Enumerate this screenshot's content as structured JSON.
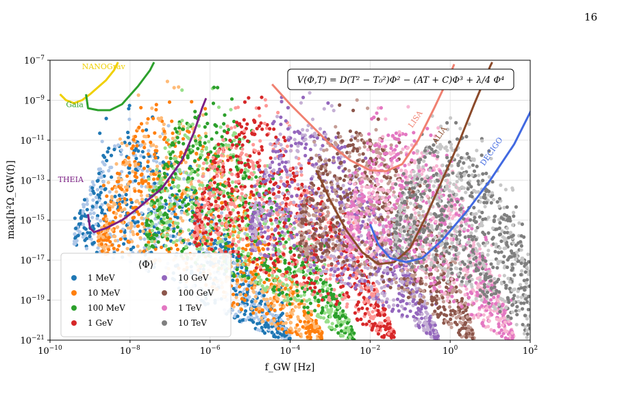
{
  "page_number": "16",
  "chart_data": {
    "type": "scatter",
    "title": "",
    "xlabel": "f_GW [Hz]",
    "ylabel": "max[h²Ω_GW(f)]",
    "x_scale": "log",
    "y_scale": "log",
    "xlim": [
      1e-10,
      100
    ],
    "ylim": [
      1e-21,
      1e-07
    ],
    "grid": true,
    "x_ticks": [
      {
        "value": 1e-10,
        "base": "10",
        "exp": "−10"
      },
      {
        "value": 1e-08,
        "base": "10",
        "exp": "−8"
      },
      {
        "value": 1e-06,
        "base": "10",
        "exp": "−6"
      },
      {
        "value": 0.0001,
        "base": "10",
        "exp": "−4"
      },
      {
        "value": 0.01,
        "base": "10",
        "exp": "−2"
      },
      {
        "value": 1,
        "base": "10",
        "exp": "0"
      },
      {
        "value": 100,
        "base": "10",
        "exp": "2"
      }
    ],
    "y_ticks": [
      {
        "value": 1e-21,
        "base": "10",
        "exp": "−21"
      },
      {
        "value": 1e-19,
        "base": "10",
        "exp": "−19"
      },
      {
        "value": 1e-17,
        "base": "10",
        "exp": "−17"
      },
      {
        "value": 1e-15,
        "base": "10",
        "exp": "−15"
      },
      {
        "value": 1e-13,
        "base": "10",
        "exp": "−13"
      },
      {
        "value": 1e-11,
        "base": "10",
        "exp": "−11"
      },
      {
        "value": 1e-09,
        "base": "10",
        "exp": "−9"
      },
      {
        "value": 1e-07,
        "base": "10",
        "exp": "−7"
      }
    ],
    "annotation": "V(Φ,T) = D(T² − T₀²)Φ² − (AT + C)Φ³ + λ/4 Φ⁴",
    "legend": {
      "title": "⟨Φ⟩",
      "position": "lower-left",
      "columns": 2
    },
    "series": [
      {
        "name": "1 MeV",
        "color": "#1f77b4",
        "light": "#aec7e8",
        "upper": [
          [
            -9.4,
            -15.4
          ],
          [
            -9.0,
            -13.2
          ],
          [
            -8.6,
            -11.3
          ],
          [
            -8.0,
            -10.8
          ],
          [
            -7.2,
            -11.4
          ],
          [
            -6.6,
            -13.0
          ],
          [
            -5.8,
            -15.2
          ],
          [
            -5.2,
            -17.0
          ],
          [
            -4.6,
            -18.8
          ],
          [
            -4.0,
            -20.6
          ]
        ],
        "lower": [
          [
            -9.4,
            -16.2
          ],
          [
            -8.6,
            -16.8
          ],
          [
            -7.6,
            -17.6
          ],
          [
            -6.8,
            -18.4
          ],
          [
            -6.0,
            -19.4
          ],
          [
            -5.0,
            -20.4
          ],
          [
            -4.2,
            -21.0
          ]
        ]
      },
      {
        "name": "10 MeV",
        "color": "#ff7f0e",
        "light": "#ffbb78",
        "upper": [
          [
            -8.8,
            -15.6
          ],
          [
            -8.2,
            -12.2
          ],
          [
            -7.8,
            -10.0
          ],
          [
            -7.0,
            -9.6
          ],
          [
            -6.2,
            -10.6
          ],
          [
            -5.6,
            -12.8
          ],
          [
            -4.8,
            -15.2
          ],
          [
            -4.2,
            -17.2
          ],
          [
            -3.6,
            -19.0
          ],
          [
            -3.2,
            -20.6
          ]
        ],
        "lower": [
          [
            -8.8,
            -16.6
          ],
          [
            -7.8,
            -17.2
          ],
          [
            -6.8,
            -18.0
          ],
          [
            -5.8,
            -19.0
          ],
          [
            -5.0,
            -19.8
          ],
          [
            -4.2,
            -20.6
          ],
          [
            -3.6,
            -21.0
          ]
        ]
      },
      {
        "name": "100 MeV",
        "color": "#2ca02c",
        "light": "#98df8a",
        "upper": [
          [
            -7.6,
            -15.0
          ],
          [
            -7.2,
            -12.2
          ],
          [
            -6.8,
            -10.0
          ],
          [
            -6.2,
            -9.4
          ],
          [
            -5.4,
            -10.4
          ],
          [
            -4.8,
            -12.6
          ],
          [
            -4.0,
            -15.0
          ],
          [
            -3.4,
            -17.0
          ],
          [
            -2.8,
            -19.0
          ],
          [
            -2.4,
            -20.6
          ]
        ],
        "lower": [
          [
            -7.6,
            -16.4
          ],
          [
            -6.6,
            -17.0
          ],
          [
            -5.6,
            -17.8
          ],
          [
            -4.6,
            -18.6
          ],
          [
            -3.8,
            -19.4
          ],
          [
            -3.2,
            -20.2
          ],
          [
            -2.6,
            -21.0
          ]
        ]
      },
      {
        "name": "1 GeV",
        "color": "#d62728",
        "light": "#ff9896",
        "upper": [
          [
            -6.4,
            -14.8
          ],
          [
            -6.0,
            -12.2
          ],
          [
            -5.6,
            -10.2
          ],
          [
            -4.9,
            -9.8
          ],
          [
            -4.2,
            -10.6
          ],
          [
            -3.6,
            -12.8
          ],
          [
            -2.8,
            -15.2
          ],
          [
            -2.2,
            -17.0
          ],
          [
            -1.7,
            -19.0
          ],
          [
            -1.4,
            -20.6
          ]
        ],
        "lower": [
          [
            -6.4,
            -16.4
          ],
          [
            -5.4,
            -17.0
          ],
          [
            -4.4,
            -17.8
          ],
          [
            -3.6,
            -18.6
          ],
          [
            -2.8,
            -19.4
          ],
          [
            -2.2,
            -20.2
          ],
          [
            -1.6,
            -21.0
          ]
        ]
      },
      {
        "name": "10 GeV",
        "color": "#9467bd",
        "light": "#c5b0d5",
        "upper": [
          [
            -5.0,
            -15.0
          ],
          [
            -4.6,
            -12.4
          ],
          [
            -4.2,
            -10.4
          ],
          [
            -3.4,
            -10.2
          ],
          [
            -2.8,
            -11.0
          ],
          [
            -2.2,
            -13.0
          ],
          [
            -1.6,
            -15.2
          ],
          [
            -1.0,
            -17.2
          ],
          [
            -0.6,
            -19.2
          ],
          [
            -0.3,
            -20.8
          ]
        ],
        "lower": [
          [
            -5.0,
            -16.6
          ],
          [
            -4.0,
            -17.2
          ],
          [
            -3.0,
            -18.0
          ],
          [
            -2.2,
            -18.8
          ],
          [
            -1.4,
            -19.6
          ],
          [
            -0.8,
            -20.4
          ],
          [
            -0.4,
            -21.0
          ]
        ]
      },
      {
        "name": "100 GeV",
        "color": "#8c564b",
        "light": "#c49c94",
        "upper": [
          [
            -3.8,
            -15.0
          ],
          [
            -3.4,
            -12.4
          ],
          [
            -3.0,
            -10.6
          ],
          [
            -2.4,
            -10.4
          ],
          [
            -1.6,
            -11.4
          ],
          [
            -1.0,
            -13.4
          ],
          [
            -0.4,
            -15.6
          ],
          [
            0.0,
            -17.4
          ],
          [
            0.4,
            -19.2
          ],
          [
            0.6,
            -20.8
          ]
        ],
        "lower": [
          [
            -3.8,
            -16.8
          ],
          [
            -2.8,
            -17.4
          ],
          [
            -1.8,
            -18.2
          ],
          [
            -1.0,
            -19.0
          ],
          [
            -0.4,
            -19.8
          ],
          [
            0.1,
            -20.6
          ],
          [
            0.4,
            -21.0
          ]
        ]
      },
      {
        "name": "1 TeV",
        "color": "#e377c2",
        "light": "#f7b6d2",
        "upper": [
          [
            -2.6,
            -14.8
          ],
          [
            -2.2,
            -12.4
          ],
          [
            -1.8,
            -10.8
          ],
          [
            -1.2,
            -10.6
          ],
          [
            -0.4,
            -11.6
          ],
          [
            0.2,
            -13.6
          ],
          [
            0.6,
            -15.6
          ],
          [
            1.0,
            -17.6
          ],
          [
            1.4,
            -19.4
          ],
          [
            1.6,
            -20.8
          ]
        ],
        "lower": [
          [
            -2.6,
            -16.8
          ],
          [
            -1.6,
            -17.4
          ],
          [
            -0.8,
            -18.2
          ],
          [
            -0.1,
            -19.0
          ],
          [
            0.5,
            -19.8
          ],
          [
            1.0,
            -20.6
          ],
          [
            1.3,
            -21.0
          ]
        ]
      },
      {
        "name": "10 TeV",
        "color": "#7f7f7f",
        "light": "#c7c7c7",
        "upper": [
          [
            -1.4,
            -15.0
          ],
          [
            -1.0,
            -12.8
          ],
          [
            -0.6,
            -11.2
          ],
          [
            0.0,
            -11.0
          ],
          [
            0.8,
            -12.2
          ],
          [
            1.4,
            -14.2
          ],
          [
            1.8,
            -16.0
          ],
          [
            2.0,
            -17.4
          ],
          [
            2.0,
            -19.0
          ]
        ],
        "lower": [
          [
            -1.4,
            -17.0
          ],
          [
            -0.6,
            -17.6
          ],
          [
            0.2,
            -18.4
          ],
          [
            0.8,
            -19.2
          ],
          [
            1.4,
            -20.0
          ],
          [
            1.8,
            -20.8
          ],
          [
            2.0,
            -21.0
          ]
        ]
      }
    ],
    "detector_curves": [
      {
        "name": "NANOGrav",
        "color": "#f0d000",
        "label_at": [
          -9.2,
          -7.45
        ],
        "points": [
          [
            -9.75,
            -8.7
          ],
          [
            -9.6,
            -9.0
          ],
          [
            -9.4,
            -9.15
          ],
          [
            -9.2,
            -9.0
          ],
          [
            -9.0,
            -8.7
          ],
          [
            -8.6,
            -8.0
          ],
          [
            -8.4,
            -7.5
          ],
          [
            -8.3,
            -7.1
          ]
        ]
      },
      {
        "name": "Gaia",
        "color": "#2ca02c",
        "label_at": [
          -9.6,
          -9.35
        ],
        "points": [
          [
            -9.1,
            -8.7
          ],
          [
            -9.05,
            -9.4
          ],
          [
            -8.8,
            -9.5
          ],
          [
            -8.5,
            -9.5
          ],
          [
            -8.2,
            -9.2
          ],
          [
            -7.8,
            -8.3
          ],
          [
            -7.5,
            -7.5
          ],
          [
            -7.4,
            -7.1
          ]
        ]
      },
      {
        "name": "THEIA",
        "color": "#7b1f84",
        "label_at": [
          -9.8,
          -13.1
        ],
        "points": [
          [
            -9.05,
            -14.7
          ],
          [
            -9.0,
            -15.4
          ],
          [
            -8.9,
            -15.6
          ],
          [
            -8.6,
            -15.4
          ],
          [
            -8.2,
            -15.0
          ],
          [
            -7.8,
            -14.4
          ],
          [
            -7.2,
            -13.4
          ],
          [
            -6.7,
            -12.0
          ],
          [
            -6.4,
            -10.6
          ],
          [
            -6.2,
            -9.4
          ],
          [
            -6.1,
            -8.9
          ]
        ]
      },
      {
        "name": "LISA",
        "color": "#f08070",
        "label_at": [
          -0.95,
          -10.4
        ],
        "points": [
          [
            -4.45,
            -8.2
          ],
          [
            -4.0,
            -9.2
          ],
          [
            -3.5,
            -10.2
          ],
          [
            -3.0,
            -11.2
          ],
          [
            -2.5,
            -12.0
          ],
          [
            -2.0,
            -12.5
          ],
          [
            -1.6,
            -12.55
          ],
          [
            -1.2,
            -12.2
          ],
          [
            -0.8,
            -11.0
          ],
          [
            -0.4,
            -9.4
          ],
          [
            0.0,
            -7.7
          ],
          [
            0.1,
            -7.2
          ]
        ]
      },
      {
        "name": "ALIA",
        "color": "#8b4a2a",
        "label_at": [
          -0.35,
          -11.2
        ],
        "points": [
          [
            -3.35,
            -12.5
          ],
          [
            -3.0,
            -14.0
          ],
          [
            -2.6,
            -15.5
          ],
          [
            -2.2,
            -16.6
          ],
          [
            -1.8,
            -17.2
          ],
          [
            -1.4,
            -17.1
          ],
          [
            -1.0,
            -16.4
          ],
          [
            -0.6,
            -14.8
          ],
          [
            -0.2,
            -13.0
          ],
          [
            0.2,
            -11.2
          ],
          [
            0.6,
            -9.2
          ],
          [
            1.0,
            -7.3
          ],
          [
            1.05,
            -7.1
          ]
        ]
      },
      {
        "name": "DECIGO",
        "color": "#4169e1",
        "label_at": [
          0.85,
          -12.3
        ],
        "points": [
          [
            -2.0,
            -15.2
          ],
          [
            -1.8,
            -16.2
          ],
          [
            -1.5,
            -16.9
          ],
          [
            -1.1,
            -17.1
          ],
          [
            -0.7,
            -16.9
          ],
          [
            -0.2,
            -16.0
          ],
          [
            0.4,
            -14.6
          ],
          [
            1.0,
            -13.0
          ],
          [
            1.6,
            -11.2
          ],
          [
            2.0,
            -9.6
          ],
          [
            2.2,
            -8.7
          ]
        ]
      }
    ]
  }
}
